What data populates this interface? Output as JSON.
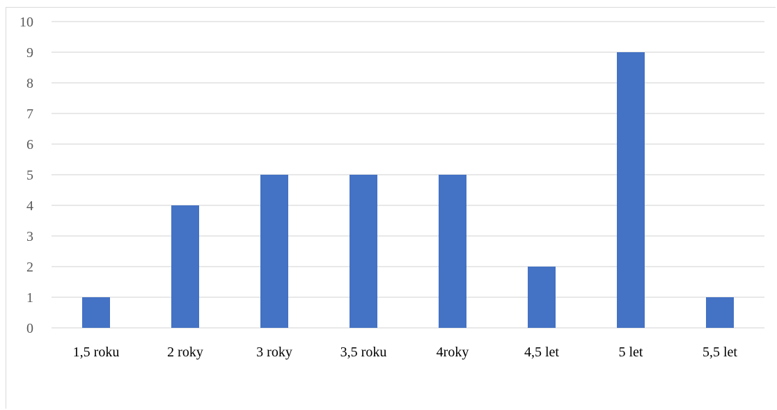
{
  "chart_data": {
    "type": "bar",
    "categories": [
      "1,5 roku",
      "2 roky",
      "3 roky",
      "3,5 roku",
      "4roky",
      "4,5 let",
      "5 let",
      "5,5 let"
    ],
    "values": [
      1,
      4,
      5,
      5,
      5,
      2,
      9,
      1
    ],
    "yticks": [
      "0",
      "1",
      "2",
      "3",
      "4",
      "5",
      "6",
      "7",
      "8",
      "9",
      "10"
    ],
    "ylim": [
      0,
      10
    ],
    "grid": true,
    "legend": "none",
    "bar_color": "#4472c4",
    "grid_color": "#d9d9d9"
  }
}
